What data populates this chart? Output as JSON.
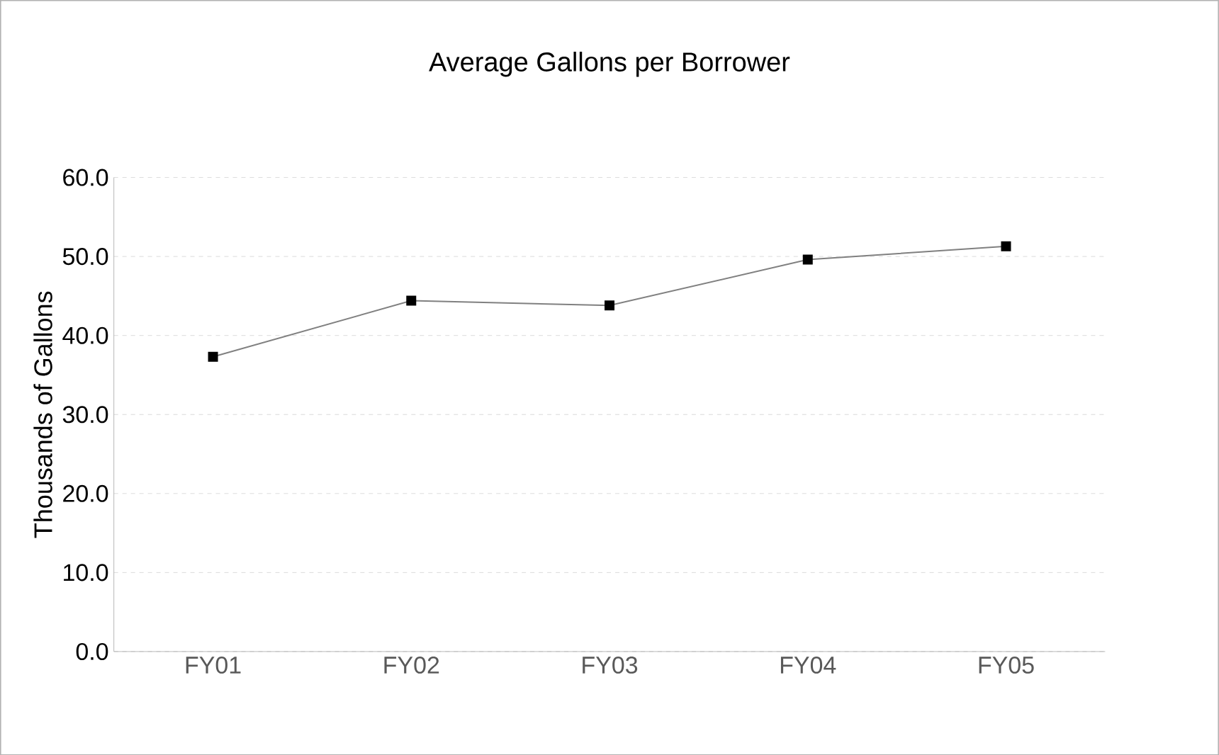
{
  "chart_data": {
    "type": "line",
    "title": "Average Gallons per Borrower",
    "ylabel": "Thousands of Gallons",
    "categories": [
      "FY01",
      "FY02",
      "FY03",
      "FY04",
      "FY05"
    ],
    "series": [
      {
        "color": "#808080",
        "values": [
          37.3,
          44.4,
          43.8,
          49.6,
          51.3
        ]
      }
    ],
    "marker": "square",
    "ylim": [
      0,
      60
    ],
    "yticks": [
      {
        "value": 0,
        "label": "0.0"
      },
      {
        "value": 10,
        "label": "10.0"
      },
      {
        "value": 20,
        "label": "20.0"
      },
      {
        "value": 30,
        "label": "30.0"
      },
      {
        "value": 40,
        "label": "40.0"
      },
      {
        "value": 50,
        "label": "50.0"
      },
      {
        "value": 60,
        "label": "60.0"
      }
    ],
    "grid": "y"
  }
}
